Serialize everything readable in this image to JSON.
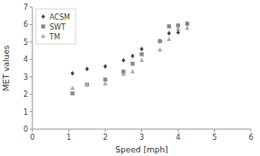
{
  "chart_data": {
    "type": "scatter",
    "xlabel": "Speed [mph]",
    "ylabel": "MET values",
    "x": [
      1.1,
      1.5,
      2.0,
      2.5,
      2.75,
      3.0,
      3.5,
      3.75,
      4.0,
      4.25
    ],
    "series": [
      {
        "name": "ACSM",
        "color": "#444444",
        "marker": "diamond",
        "values": [
          3.2,
          3.45,
          3.6,
          3.95,
          4.2,
          4.6,
          5.05,
          5.5,
          5.55,
          6.05
        ]
      },
      {
        "name": "SWT",
        "color": "#888888",
        "marker": "square",
        "values": [
          2.05,
          2.55,
          2.85,
          3.3,
          3.75,
          4.3,
          5.05,
          5.9,
          5.95,
          6.05
        ]
      },
      {
        "name": "TM",
        "color": "#aaaaaa",
        "marker": "triangle",
        "values": [
          2.35,
          2.55,
          2.6,
          3.15,
          3.3,
          3.95,
          4.55,
          5.15,
          5.75,
          5.8
        ]
      }
    ],
    "xlim": [
      0,
      6
    ],
    "ylim": [
      0,
      7
    ],
    "xticks": [
      0,
      1,
      2,
      3,
      4,
      5,
      6
    ],
    "yticks": [
      0,
      1,
      2,
      3,
      4,
      5,
      6,
      7
    ],
    "grid": false,
    "legend": "upper-left"
  }
}
